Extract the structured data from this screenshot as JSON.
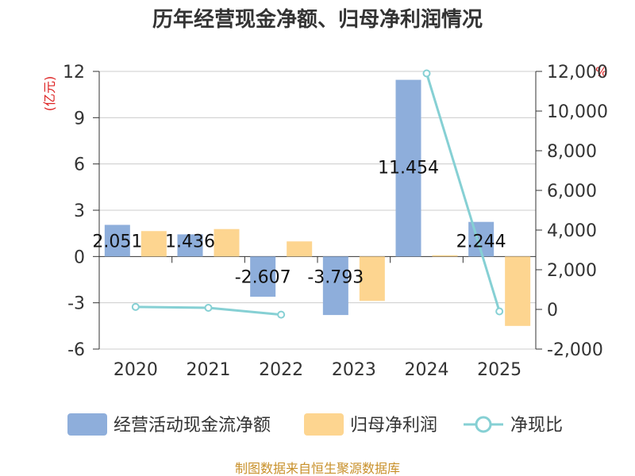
{
  "chart_data": {
    "type": "bar",
    "title": "历年经营现金净额、归母净利润情况",
    "categories": [
      "2020",
      "2021",
      "2022",
      "2023",
      "2024",
      "2025"
    ],
    "series": [
      {
        "name": "经营活动现金流净额",
        "kind": "bar",
        "axis": "left",
        "color": "#8eaedb",
        "values": [
          2.051,
          1.436,
          -2.607,
          -3.793,
          11.454,
          2.244
        ],
        "labels": [
          "2.051",
          "1.436",
          "-2.607",
          "-3.793",
          "11.454",
          "2.244"
        ]
      },
      {
        "name": "归母净利润",
        "kind": "bar",
        "axis": "left",
        "color": "#fdd590",
        "values": [
          1.65,
          1.78,
          0.98,
          -2.88,
          0.08,
          -4.5
        ]
      },
      {
        "name": "净现比",
        "kind": "line",
        "axis": "right",
        "color": "#86d0d4",
        "values": [
          124,
          81,
          -266,
          null,
          11900,
          -100
        ]
      }
    ],
    "left_axis": {
      "unit": "(亿元)",
      "min": -6,
      "max": 12,
      "ticks": [
        -6,
        -3,
        0,
        3,
        6,
        9,
        12
      ],
      "tick_labels": [
        "-6",
        "-3",
        "0",
        "3",
        "6",
        "9",
        "12"
      ]
    },
    "right_axis": {
      "unit": "%",
      "min": -2000,
      "max": 12000,
      "ticks": [
        -2000,
        0,
        2000,
        4000,
        6000,
        8000,
        10000,
        12000
      ],
      "tick_labels": [
        "-2,000",
        "0",
        "2,000",
        "4,000",
        "6,000",
        "8,000",
        "10,000",
        "12,000"
      ]
    },
    "legend": [
      "经营活动现金流净额",
      "归母净利润",
      "净现比"
    ],
    "legend_position": "bottom",
    "grid": true
  },
  "source": "制图数据来自恒生聚源数据库"
}
